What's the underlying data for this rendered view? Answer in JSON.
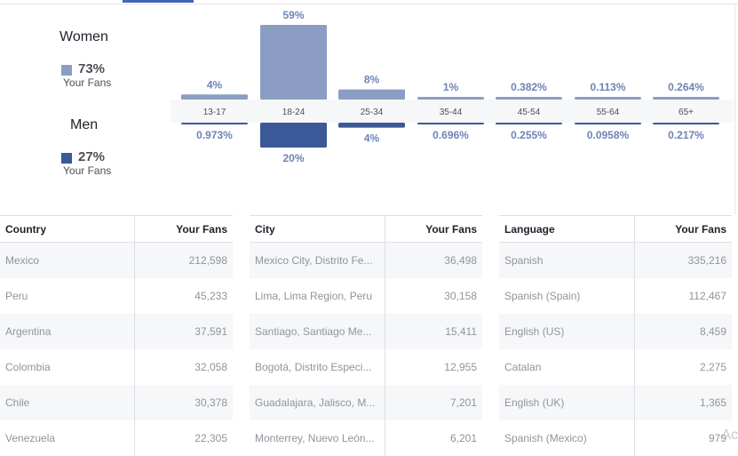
{
  "legend": {
    "women": {
      "title": "Women",
      "pct": "73%",
      "sub": "Your Fans",
      "color": "#8b9dc3"
    },
    "men": {
      "title": "Men",
      "pct": "27%",
      "sub": "Your Fans",
      "color": "#3b5998"
    }
  },
  "chart_data": {
    "type": "bar",
    "categories": [
      "13-17",
      "18-24",
      "25-34",
      "35-44",
      "45-54",
      "55-64",
      "65+"
    ],
    "series": [
      {
        "name": "Women",
        "values": [
          4,
          59,
          8,
          1,
          0.382,
          0.113,
          0.264
        ],
        "labels": [
          "4%",
          "59%",
          "8%",
          "1%",
          "0.382%",
          "0.113%",
          "0.264%"
        ],
        "color": "#8b9dc3"
      },
      {
        "name": "Men",
        "values": [
          0.973,
          20,
          4,
          0.696,
          0.255,
          0.0958,
          0.217
        ],
        "labels": [
          "0.973%",
          "20%",
          "4%",
          "0.696%",
          "0.255%",
          "0.0958%",
          "0.217%"
        ],
        "color": "#3b5998"
      }
    ],
    "ylim": [
      0,
      59
    ],
    "grid": false
  },
  "tables": {
    "country": {
      "headers": [
        "Country",
        "Your Fans"
      ],
      "rows": [
        [
          "Mexico",
          "212,598"
        ],
        [
          "Peru",
          "45,233"
        ],
        [
          "Argentina",
          "37,591"
        ],
        [
          "Colombia",
          "32,058"
        ],
        [
          "Chile",
          "30,378"
        ],
        [
          "Venezuela",
          "22,305"
        ]
      ]
    },
    "city": {
      "headers": [
        "City",
        "Your Fans"
      ],
      "rows": [
        [
          "Mexico City, Distrito Fe...",
          "36,498"
        ],
        [
          "Lima, Lima Region, Peru",
          "30,158"
        ],
        [
          "Santiago, Santiago Me...",
          "15,411"
        ],
        [
          "Bogotá, Distrito Especi...",
          "12,955"
        ],
        [
          "Guadalajara, Jalisco, M...",
          "7,201"
        ],
        [
          "Monterrey, Nuevo León...",
          "6,201"
        ]
      ]
    },
    "language": {
      "headers": [
        "Language",
        "Your Fans"
      ],
      "rows": [
        [
          "Spanish",
          "335,216"
        ],
        [
          "Spanish (Spain)",
          "112,467"
        ],
        [
          "English (US)",
          "8,459"
        ],
        [
          "Catalan",
          "2,275"
        ],
        [
          "English (UK)",
          "1,365"
        ],
        [
          "Spanish (Mexico)",
          "979"
        ]
      ]
    }
  },
  "watermark": "Ac"
}
